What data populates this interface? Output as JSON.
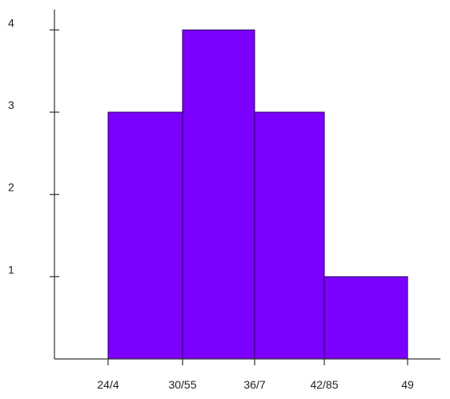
{
  "chart_data": {
    "type": "bar",
    "style": "histogram",
    "bin_edges": [
      24.4,
      30.55,
      36.7,
      42.85,
      49
    ],
    "x_tick_labels": [
      "24/4",
      "30/55",
      "36/7",
      "42/85",
      "49"
    ],
    "values": [
      3,
      4,
      3,
      1
    ],
    "y_ticks": [
      1,
      2,
      3,
      4
    ],
    "y_tick_labels": [
      "1",
      "2",
      "3",
      "4"
    ],
    "ylim": [
      0,
      4.35
    ],
    "bar_color": "#7B00FF",
    "title": "",
    "xlabel": "",
    "ylabel": "",
    "grid": false
  }
}
